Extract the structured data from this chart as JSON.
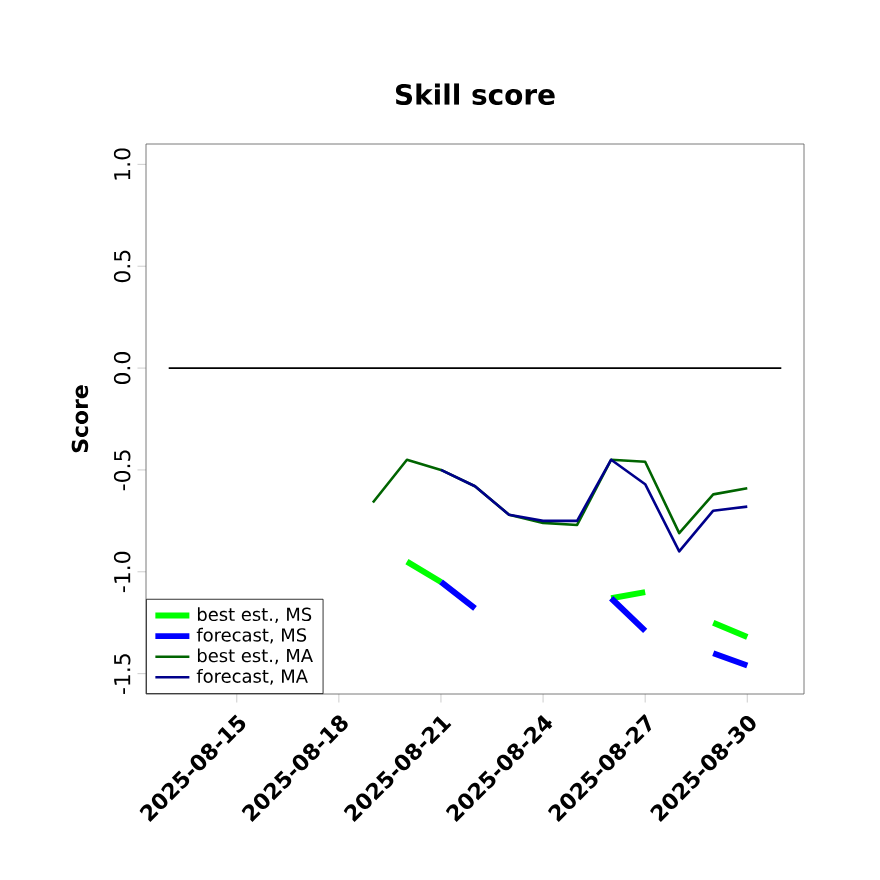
{
  "chart_data": {
    "type": "line",
    "title": "Skill score",
    "ylabel": "Score",
    "x": [
      "2025-08-19",
      "2025-08-20",
      "2025-08-21",
      "2025-08-22",
      "2025-08-23",
      "2025-08-24",
      "2025-08-25",
      "2025-08-26",
      "2025-08-27",
      "2025-08-28",
      "2025-08-29",
      "2025-08-30"
    ],
    "series": [
      {
        "name": "best est., MS",
        "color": "#00ff00",
        "values": [
          null,
          -0.95,
          -1.05,
          null,
          null,
          null,
          null,
          -1.13,
          -1.1,
          null,
          -1.25,
          -1.32
        ]
      },
      {
        "name": "forecast, MS",
        "color": "#0000ff",
        "values": [
          null,
          null,
          -1.05,
          -1.18,
          null,
          null,
          null,
          -1.13,
          -1.29,
          null,
          -1.4,
          -1.46
        ]
      },
      {
        "name": "best est., MA",
        "color": "#006400",
        "values": [
          -0.66,
          -0.45,
          -0.5,
          -0.58,
          -0.72,
          -0.76,
          -0.77,
          -0.45,
          -0.46,
          -0.81,
          -0.62,
          -0.59
        ]
      },
      {
        "name": "forecast, MA",
        "color": "#00008b",
        "values": [
          null,
          null,
          -0.5,
          -0.58,
          -0.72,
          -0.75,
          -0.75,
          -0.45,
          -0.57,
          -0.9,
          -0.7,
          -0.68
        ]
      },
      {
        "color": "#000000",
        "x": [
          "2025-08-13",
          "2025-08-31"
        ],
        "values": [
          0,
          0
        ]
      }
    ],
    "xlim": [
      "2025-08-12T08:00",
      "2025-08-31T16:00"
    ],
    "ylim": [
      -1.6,
      1.1
    ],
    "xticks": [
      "2025-08-15",
      "2025-08-18",
      "2025-08-21",
      "2025-08-24",
      "2025-08-27",
      "2025-08-30"
    ],
    "yticks": [
      {
        "value": -1.5,
        "label": "-1.5"
      },
      {
        "value": -1,
        "label": "-1.0"
      },
      {
        "value": -0.5,
        "label": "-0.5"
      },
      {
        "value": 0,
        "label": "0.0"
      },
      {
        "value": 0.5,
        "label": "0.5"
      },
      {
        "value": 1,
        "label": "1.0"
      }
    ],
    "legend": "bottom left",
    "grid": false,
    "marker": "none",
    "line_style": "solid"
  }
}
